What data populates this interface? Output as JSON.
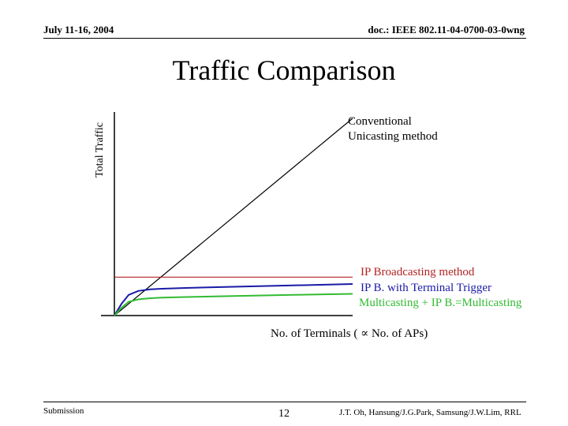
{
  "header": {
    "date": "July 11-16, 2004",
    "doc": "doc.: IEEE 802.11-04-0700-03-0wng"
  },
  "slide": {
    "title": "Traffic Comparison"
  },
  "footer": {
    "submission": "Submission",
    "page": "12",
    "authors": "J.T. Oh, Hansung/J.G.Park, Samsung/J.W.Lim, RRL"
  },
  "colors": {
    "unicast": "#000000",
    "broadcast": "#b22222",
    "trigger": "#1a1aa6",
    "multicast": "#33bb33"
  },
  "chart_data": {
    "type": "line",
    "ylabel": "Total Traffic",
    "xlabel": "No. of Terminals ( ∝ No. of APs)",
    "grid": false,
    "legend": "right-of-lines",
    "series": [
      {
        "name": "Conventional Unicasting method",
        "label_lines": [
          "Conventional",
          "Unicasting method"
        ],
        "color": "#000000",
        "x": [
          0,
          100
        ],
        "y": [
          0,
          100
        ]
      },
      {
        "name": "IP Broadcasting method",
        "label_lines": [
          "IP Broadcasting method"
        ],
        "color": "#b22222",
        "x": [
          0,
          100
        ],
        "y": [
          19.5,
          19.5
        ]
      },
      {
        "name": "IP B. with Terminal Trigger",
        "label_lines": [
          "IP B. with Terminal Trigger"
        ],
        "color": "#1a1aa6",
        "x": [
          0,
          3,
          6,
          10,
          15,
          20,
          30,
          50,
          75,
          100
        ],
        "y": [
          0,
          6,
          10.5,
          12.5,
          13.3,
          13.6,
          14,
          14.6,
          15.3,
          16
        ]
      },
      {
        "name": "Multicasting + IP B.=Multicasting",
        "label_lines": [
          "Multicasting + IP B.=Multicasting"
        ],
        "color": "#33bb33",
        "x": [
          0,
          3,
          6,
          10,
          15,
          20,
          30,
          50,
          75,
          100
        ],
        "y": [
          0,
          4,
          7,
          8.2,
          8.8,
          9.1,
          9.4,
          9.9,
          10.5,
          11
        ]
      }
    ]
  }
}
